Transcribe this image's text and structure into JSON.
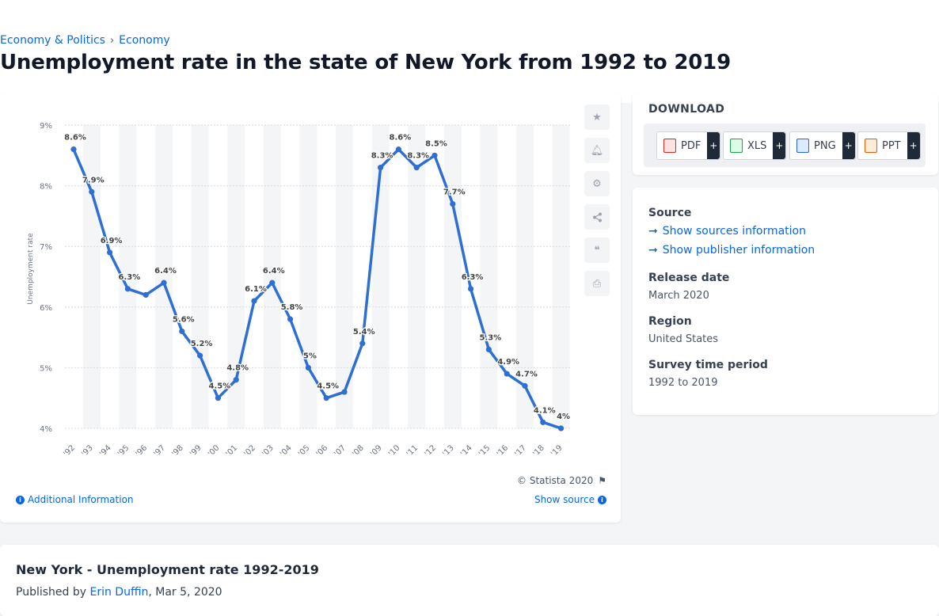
{
  "breadcrumb": {
    "items": [
      "Economy & Politics",
      "Economy"
    ],
    "separator": "›"
  },
  "page_title": "Unemployment rate in the state of New York from 1992 to 2019",
  "chart_toolbar": {
    "icons": [
      "star-icon",
      "bell-icon",
      "gear-icon",
      "share-icon",
      "quote-icon",
      "print-icon"
    ]
  },
  "chart_data": {
    "type": "line",
    "title": "",
    "xlabel": "",
    "ylabel": "Unemployment rate",
    "categories": [
      "'92",
      "'93",
      "'94",
      "'95",
      "'96",
      "'97",
      "'98",
      "'99",
      "'00",
      "'01",
      "'02",
      "'03",
      "'04",
      "'05",
      "'06",
      "'07",
      "'08",
      "'09",
      "'10",
      "'11",
      "'12",
      "'13",
      "'14",
      "'15",
      "'16",
      "'17",
      "'18",
      "'19"
    ],
    "series": [
      {
        "values": [
          8.6,
          7.9,
          6.9,
          6.3,
          6.2,
          6.4,
          5.6,
          5.2,
          4.5,
          4.8,
          6.1,
          6.4,
          5.8,
          5.0,
          4.5,
          4.6,
          5.4,
          8.3,
          8.6,
          8.3,
          8.5,
          7.7,
          6.3,
          5.3,
          4.9,
          4.7,
          4.1,
          4.0
        ],
        "labels": [
          "8.6%",
          "7.9%",
          "6.9%",
          "6.3%",
          "",
          "6.4%",
          "5.6%",
          "5.2%",
          "4.5%",
          "4.8%",
          "6.1%",
          "6.4%",
          "5.8%",
          "5%",
          "4.5%",
          "",
          "5.4%",
          "8.3%",
          "8.6%",
          "8.3%",
          "8.5%",
          "7.7%",
          "6.3%",
          "5.3%",
          "4.9%",
          "4.7%",
          "4.1%",
          "4%"
        ],
        "color": "#2e6fd3"
      }
    ],
    "yticks": [
      "4%",
      "5%",
      "6%",
      "7%",
      "8%",
      "9%"
    ],
    "ylim": [
      4,
      9
    ],
    "grid": true,
    "legend": "none"
  },
  "chart_footer": {
    "copyright": "© Statista 2020",
    "additional_info": "Additional Information",
    "show_source": "Show source"
  },
  "download": {
    "title": "DOWNLOAD",
    "buttons": [
      {
        "label": "PDF",
        "color": "#dc2626"
      },
      {
        "label": "XLS",
        "color": "#16a34a"
      },
      {
        "label": "PNG",
        "color": "#2563eb"
      },
      {
        "label": "PPT",
        "color": "#ea580c"
      }
    ],
    "plus": "+"
  },
  "info": {
    "source_label": "Source",
    "sources_link": "Show sources information",
    "publisher_link": "Show publisher information",
    "release_label": "Release date",
    "release_value": "March 2020",
    "region_label": "Region",
    "region_value": "United States",
    "survey_label": "Survey time period",
    "survey_value": "1992 to 2019"
  },
  "publication": {
    "title": "New York - Unemployment rate 1992-2019",
    "published_by": "Published by",
    "author": "Erin Duffin",
    "date": ", Mar 5, 2020"
  }
}
